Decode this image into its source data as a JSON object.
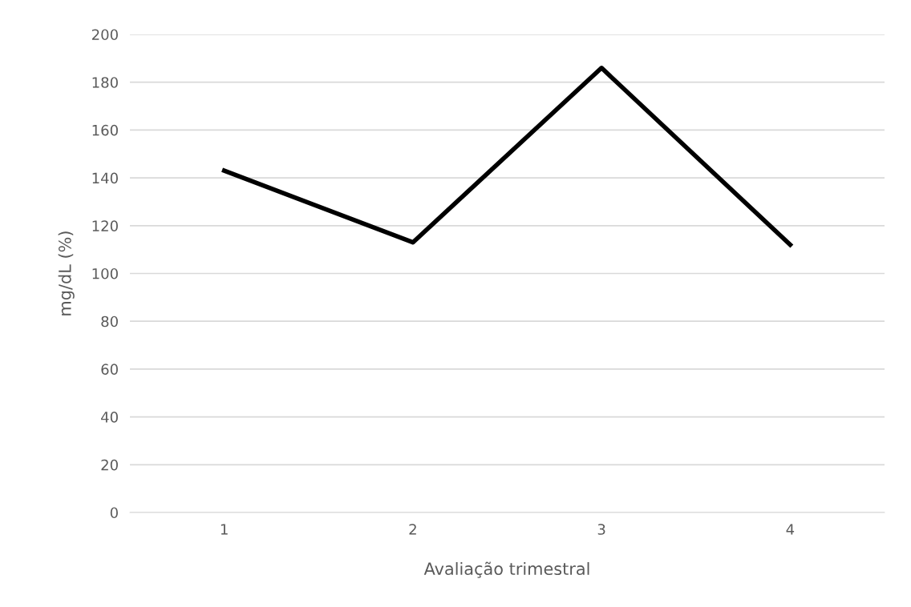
{
  "chart_data": {
    "type": "line",
    "xlabel": "Avaliação trimestral",
    "ylabel": "mg/dL (%)",
    "categories": [
      "1",
      "2",
      "3",
      "4"
    ],
    "series": [
      {
        "color": "#000000",
        "values": [
          143,
          113,
          186,
          112
        ]
      }
    ],
    "ylim": [
      0,
      200
    ],
    "yticks": [
      0,
      20,
      40,
      60,
      80,
      100,
      120,
      140,
      160,
      180,
      200
    ],
    "grid": "y",
    "legend": false,
    "marker": "none",
    "line_style": "solid"
  }
}
